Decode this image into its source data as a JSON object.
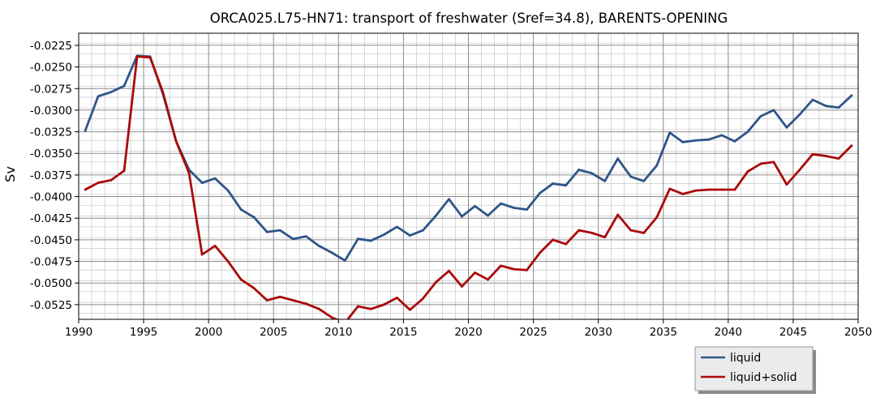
{
  "chart_data": {
    "type": "line",
    "title": "ORCA025.L75-HN71: transport of freshwater (Sref=34.8), BARENTS-OPENING",
    "xlabel": "",
    "ylabel": "Sv",
    "xlim": [
      1990,
      2050
    ],
    "ylim": [
      -0.0542,
      -0.0211
    ],
    "x_ticks": [
      "1990",
      "1995",
      "2000",
      "2005",
      "2010",
      "2015",
      "2020",
      "2025",
      "2030",
      "2035",
      "2040",
      "2045",
      "2050"
    ],
    "y_ticks": [
      "-0.0225",
      "-0.0250",
      "-0.0275",
      "-0.0300",
      "-0.0325",
      "-0.0350",
      "-0.0375",
      "-0.0400",
      "-0.0425",
      "-0.0450",
      "-0.0475",
      "-0.0500",
      "-0.0525"
    ],
    "grid": true,
    "legend_position": "lower-right, outside plot",
    "x": [
      1990.5,
      1991.5,
      1992.5,
      1993.5,
      1994.5,
      1995.5,
      1996.5,
      1997.5,
      1998.5,
      1999.5,
      2000.5,
      2001.5,
      2002.5,
      2003.5,
      2004.5,
      2005.5,
      2006.5,
      2007.5,
      2008.5,
      2009.5,
      2010.5,
      2011.5,
      2012.5,
      2013.5,
      2014.5,
      2015.5,
      2016.5,
      2017.5,
      2018.5,
      2019.5,
      2020.5,
      2021.5,
      2022.5,
      2023.5,
      2024.5,
      2025.5,
      2026.5,
      2027.5,
      2028.5,
      2029.5,
      2030.5,
      2031.5,
      2032.5,
      2033.5,
      2034.5,
      2035.5,
      2036.5,
      2037.5,
      2038.5,
      2039.5,
      2040.5,
      2041.5,
      2042.5,
      2043.5,
      2044.5,
      2045.5,
      2046.5,
      2047.5,
      2048.5,
      2049.5
    ],
    "series": [
      {
        "name": "liquid",
        "color": "#2f5589",
        "values": [
          -0.0324,
          -0.0284,
          -0.0279,
          -0.0272,
          -0.0237,
          -0.0238,
          -0.0282,
          -0.0336,
          -0.0369,
          -0.0384,
          -0.0379,
          -0.0393,
          -0.0415,
          -0.0424,
          -0.0441,
          -0.0439,
          -0.0449,
          -0.0446,
          -0.0457,
          -0.0465,
          -0.0474,
          -0.0449,
          -0.0451,
          -0.0444,
          -0.0435,
          -0.0445,
          -0.0439,
          -0.0422,
          -0.0403,
          -0.0423,
          -0.0411,
          -0.0422,
          -0.0408,
          -0.0413,
          -0.0415,
          -0.0396,
          -0.0385,
          -0.0387,
          -0.0369,
          -0.0373,
          -0.0382,
          -0.0356,
          -0.0377,
          -0.0382,
          -0.0364,
          -0.0326,
          -0.0337,
          -0.0335,
          -0.0334,
          -0.0329,
          -0.0336,
          -0.0325,
          -0.0307,
          -0.03,
          -0.032,
          -0.0305,
          -0.0288,
          -0.0295,
          -0.0297,
          -0.0283
        ]
      },
      {
        "name": "liquid+solid",
        "color": "#aa0a0a",
        "values": [
          -0.0392,
          -0.0384,
          -0.0381,
          -0.037,
          -0.0238,
          -0.0239,
          -0.028,
          -0.0336,
          -0.0373,
          -0.0467,
          -0.0457,
          -0.0475,
          -0.0496,
          -0.0506,
          -0.052,
          -0.0516,
          -0.052,
          -0.0524,
          -0.053,
          -0.054,
          -0.0546,
          -0.0527,
          -0.053,
          -0.0525,
          -0.0517,
          -0.0531,
          -0.0518,
          -0.0499,
          -0.0486,
          -0.0504,
          -0.0488,
          -0.0496,
          -0.048,
          -0.0484,
          -0.0485,
          -0.0465,
          -0.045,
          -0.0455,
          -0.0439,
          -0.0442,
          -0.0447,
          -0.0421,
          -0.0439,
          -0.0442,
          -0.0424,
          -0.0391,
          -0.0397,
          -0.0393,
          -0.0392,
          -0.0392,
          -0.0392,
          -0.0371,
          -0.0362,
          -0.036,
          -0.0386,
          -0.0369,
          -0.0351,
          -0.0353,
          -0.0356,
          -0.0341
        ]
      }
    ]
  }
}
